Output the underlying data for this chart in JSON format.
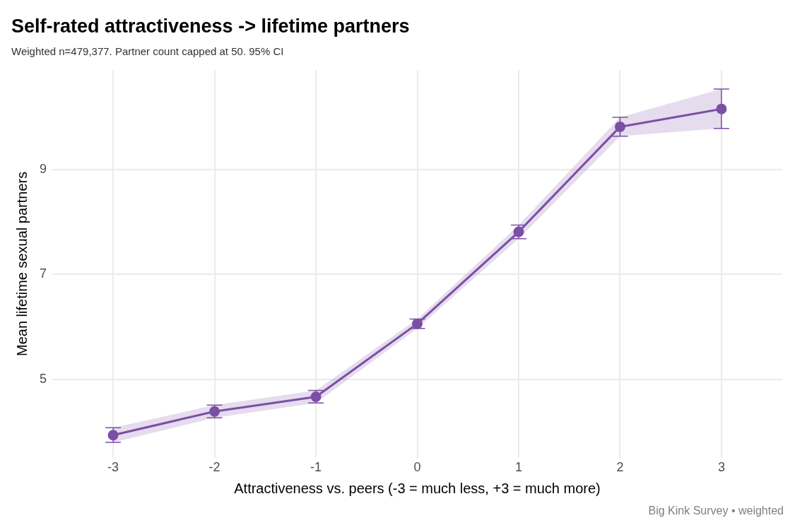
{
  "chart_data": {
    "type": "line",
    "title": "Self-rated attractiveness -> lifetime partners",
    "subtitle": "Weighted n=479,377. Partner count capped at 50. 95% CI",
    "xlabel": "Attractiveness vs. peers (-3 = much less, +3 = much more)",
    "ylabel": "Mean lifetime sexual partners",
    "annotations": [
      "Big Kink Survey  •  weighted"
    ],
    "x": [
      -3,
      -2,
      -1,
      0,
      1,
      2,
      3
    ],
    "series": [
      {
        "color": "#7b4fa6",
        "values": [
          3.94,
          4.39,
          4.67,
          6.06,
          7.81,
          9.81,
          10.15
        ],
        "errors": [
          0.14,
          0.12,
          0.12,
          0.09,
          0.13,
          0.18,
          [
            9.78,
            10.53
          ]
        ],
        "lower": [
          3.8,
          4.27,
          4.55,
          5.97,
          7.68,
          9.63,
          9.78
        ],
        "upper": [
          4.08,
          4.51,
          4.79,
          6.15,
          7.94,
          9.99,
          10.53
        ]
      }
    ],
    "xlim": [
      -3.6,
      3.6
    ],
    "ylim": [
      3.5,
      10.9
    ],
    "xticks": [
      -3,
      -2,
      -1,
      0,
      1,
      2,
      3
    ],
    "yticks": [
      5,
      7,
      9
    ],
    "grid": true,
    "marker": "circle",
    "line_style": "solid",
    "legend": false
  }
}
